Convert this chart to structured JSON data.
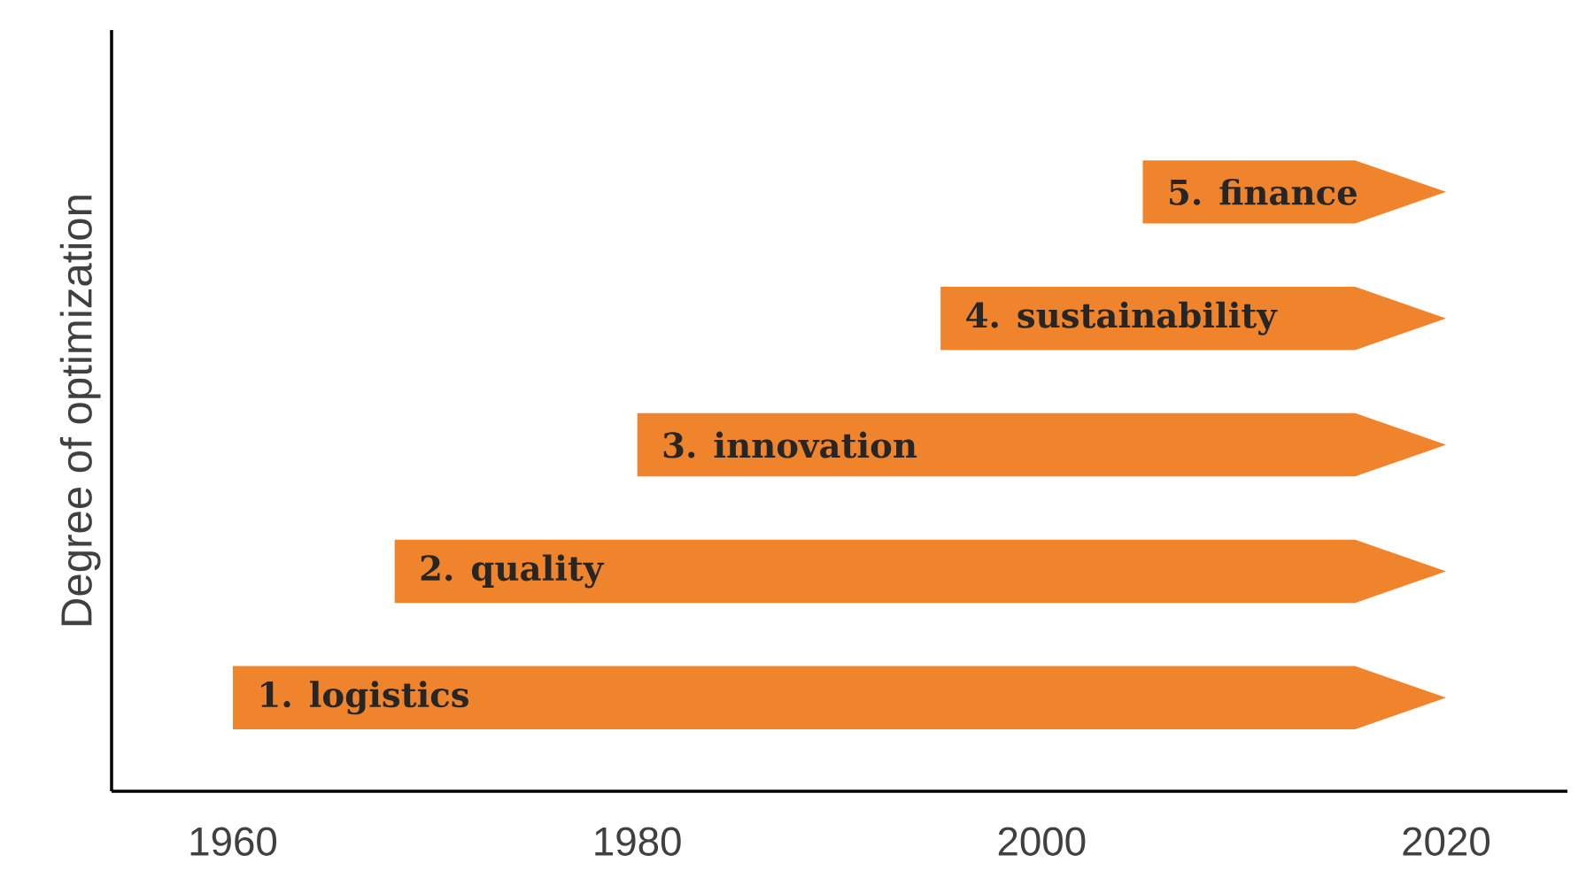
{
  "chart_data": {
    "type": "bar",
    "orientation": "horizontal",
    "ylabel": "Degree of optimization",
    "categories": [
      null,
      null,
      null,
      null,
      null
    ],
    "annotations": [
      "5. finance",
      "4. sustainability",
      "3. innovation",
      "2. quality",
      "1. logistics"
    ],
    "base": [
      2005,
      1995,
      1980,
      1968,
      1960
    ],
    "values": [
      15,
      25,
      40,
      52,
      60
    ],
    "color": "#f0842c",
    "xlim": [
      1954,
      2026
    ],
    "xticks": [
      1960,
      1980,
      2000,
      2020
    ],
    "grid": false
  }
}
